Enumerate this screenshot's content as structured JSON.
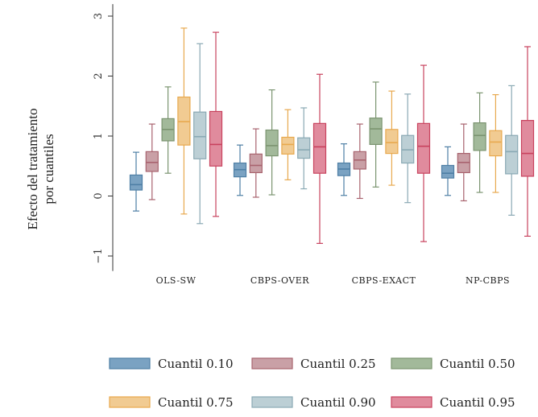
{
  "chart_data": {
    "type": "boxplot",
    "ylabel": [
      "Efecto del tratamiento",
      "por cuantiles"
    ],
    "ylim": [
      -1.25,
      3.2
    ],
    "yticks": [
      -1,
      0,
      1,
      2,
      3
    ],
    "ytick_labels": [
      "−1",
      "0",
      "1",
      "2",
      "3"
    ],
    "grid": false,
    "legend_position": "bottom",
    "categories": [
      "OLS-SW",
      "CBPS-OVER",
      "CBPS-EXACT",
      "NP-CBPS"
    ],
    "series": [
      {
        "name": "Cuantil 0.10",
        "color": "#4e7fa5",
        "fill": "#7aa2c2",
        "stats": [
          {
            "min": -0.25,
            "q1": 0.1,
            "median": 0.19,
            "q3": 0.35,
            "max": 0.73
          },
          {
            "min": 0.01,
            "q1": 0.32,
            "median": 0.44,
            "q3": 0.55,
            "max": 0.85
          },
          {
            "min": 0.01,
            "q1": 0.34,
            "median": 0.45,
            "q3": 0.55,
            "max": 0.87
          },
          {
            "min": 0.01,
            "q1": 0.3,
            "median": 0.38,
            "q3": 0.51,
            "max": 0.82
          }
        ]
      },
      {
        "name": "Cuantil 0.25",
        "color": "#a8636e",
        "fill": "#c9a0a6",
        "stats": [
          {
            "min": -0.06,
            "q1": 0.41,
            "median": 0.56,
            "q3": 0.74,
            "max": 1.2
          },
          {
            "min": -0.02,
            "q1": 0.39,
            "median": 0.51,
            "q3": 0.7,
            "max": 1.12
          },
          {
            "min": -0.04,
            "q1": 0.45,
            "median": 0.6,
            "q3": 0.74,
            "max": 1.2
          },
          {
            "min": -0.08,
            "q1": 0.39,
            "median": 0.56,
            "q3": 0.71,
            "max": 1.2
          }
        ]
      },
      {
        "name": "Cuantil 0.50",
        "color": "#7b9470",
        "fill": "#a2b99a",
        "stats": [
          {
            "min": 0.38,
            "q1": 0.92,
            "median": 1.11,
            "q3": 1.29,
            "max": 1.82
          },
          {
            "min": 0.02,
            "q1": 0.67,
            "median": 0.84,
            "q3": 1.1,
            "max": 1.77
          },
          {
            "min": 0.15,
            "q1": 0.86,
            "median": 1.12,
            "q3": 1.3,
            "max": 1.9
          },
          {
            "min": 0.06,
            "q1": 0.76,
            "median": 1.01,
            "q3": 1.22,
            "max": 1.72
          }
        ]
      },
      {
        "name": "Cuantil 0.75",
        "color": "#e8a94e",
        "fill": "#f1cb92",
        "stats": [
          {
            "min": -0.3,
            "q1": 0.85,
            "median": 1.24,
            "q3": 1.65,
            "max": 2.8
          },
          {
            "min": 0.27,
            "q1": 0.7,
            "median": 0.86,
            "q3": 0.98,
            "max": 1.44
          },
          {
            "min": 0.18,
            "q1": 0.71,
            "median": 0.89,
            "q3": 1.11,
            "max": 1.75
          },
          {
            "min": 0.06,
            "q1": 0.67,
            "median": 0.9,
            "q3": 1.09,
            "max": 1.69
          }
        ]
      },
      {
        "name": "Cuantil 0.90",
        "color": "#8aa9b4",
        "fill": "#bccfd5",
        "stats": [
          {
            "min": -0.46,
            "q1": 0.62,
            "median": 0.99,
            "q3": 1.4,
            "max": 2.54
          },
          {
            "min": 0.12,
            "q1": 0.63,
            "median": 0.77,
            "q3": 0.97,
            "max": 1.47
          },
          {
            "min": -0.11,
            "q1": 0.55,
            "median": 0.77,
            "q3": 1.01,
            "max": 1.7
          },
          {
            "min": -0.32,
            "q1": 0.37,
            "median": 0.74,
            "q3": 1.01,
            "max": 1.84
          }
        ]
      },
      {
        "name": "Cuantil 0.95",
        "color": "#c8425e",
        "fill": "#e08b9d",
        "stats": [
          {
            "min": -0.34,
            "q1": 0.5,
            "median": 0.86,
            "q3": 1.41,
            "max": 2.73
          },
          {
            "min": -0.79,
            "q1": 0.38,
            "median": 0.82,
            "q3": 1.21,
            "max": 2.03
          },
          {
            "min": -0.76,
            "q1": 0.38,
            "median": 0.83,
            "q3": 1.21,
            "max": 2.18
          },
          {
            "min": -0.67,
            "q1": 0.33,
            "median": 0.71,
            "q3": 1.26,
            "max": 2.49
          }
        ]
      }
    ]
  }
}
